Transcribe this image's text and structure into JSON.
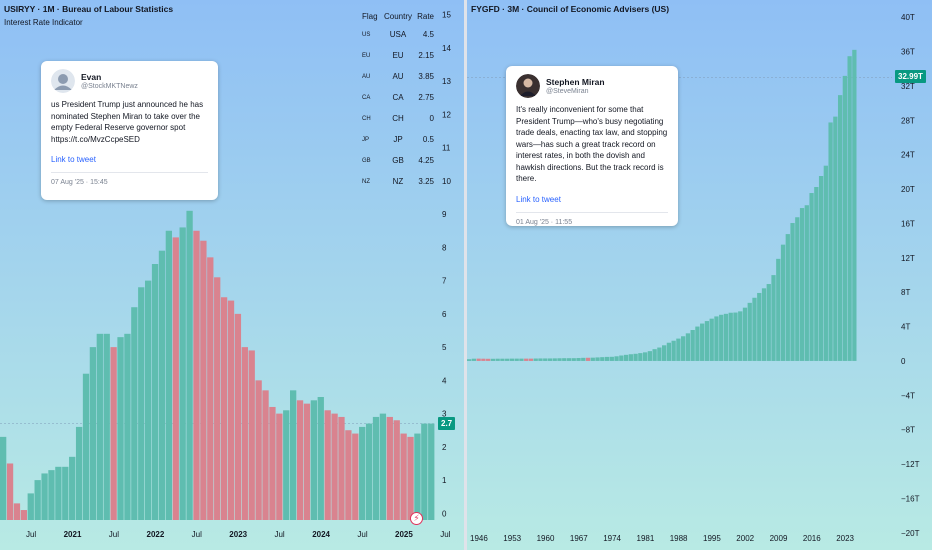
{
  "colors": {
    "up": "#5fbdb0",
    "down": "#d9838f",
    "badge": "#089981",
    "bg_top": "#8fbff5",
    "bg_bottom": "#b8eae4"
  },
  "left": {
    "title": "USIRYY · 1M · Bureau of Labour Statistics",
    "subtitle": "Interest Rate Indicator",
    "current_badge": "2.7",
    "tweet": {
      "name": "Evan",
      "handle": "@StockMKTNewz",
      "text": "us President Trump just announced he has nominated Stephen Miran to take over the empty Federal Reserve governor spot https://t.co/MvzCcpeSED",
      "link": "Link to tweet",
      "time": "07 Aug '25 · 15:45"
    },
    "rate_table": {
      "headers": [
        "Flag",
        "Country",
        "Rate"
      ],
      "rows": [
        {
          "flag": "US",
          "country": "USA",
          "rate": "4.5"
        },
        {
          "flag": "EU",
          "country": "EU",
          "rate": "2.15"
        },
        {
          "flag": "AU",
          "country": "AU",
          "rate": "3.85"
        },
        {
          "flag": "CA",
          "country": "CA",
          "rate": "2.75"
        },
        {
          "flag": "CH",
          "country": "CH",
          "rate": "0"
        },
        {
          "flag": "JP",
          "country": "JP",
          "rate": "0.5"
        },
        {
          "flag": "GB",
          "country": "GB",
          "rate": "4.25"
        },
        {
          "flag": "NZ",
          "country": "NZ",
          "rate": "3.25"
        }
      ]
    }
  },
  "right": {
    "title": "FYGFD · 3M · Council of Economic Advisers (US)",
    "current_badge": "32.99T",
    "tweet": {
      "name": "Stephen Miran",
      "handle": "@SteveMiran",
      "text": "It's really inconvenient for some that President Trump—who's busy negotiating trade deals, enacting tax law, and stopping wars—has such a great track record on interest rates, in both the dovish and hawkish directions. But the track record is there.",
      "link": "Link to tweet",
      "time": "01 Aug '25 · 11:55"
    }
  },
  "chart_data": [
    {
      "type": "bar",
      "title": "USIRYY · 1M · Bureau of Labour Statistics",
      "subtitle": "Interest Rate Indicator",
      "xlabel": "",
      "ylabel": "",
      "ylim": [
        -0.2,
        15.2
      ],
      "y_ticks": [
        0,
        1,
        2,
        3,
        4,
        5,
        6,
        7,
        8,
        9,
        10,
        11,
        12,
        13,
        14,
        15
      ],
      "x_ticks": [
        "Jul",
        "2021",
        "Jul",
        "2022",
        "Jul",
        "2023",
        "Jul",
        "2024",
        "Jul",
        "2025",
        "Jul"
      ],
      "x_tick_index": [
        4,
        10,
        16,
        22,
        28,
        34,
        40,
        46,
        52,
        58,
        64
      ],
      "values": [
        2.3,
        1.5,
        0.3,
        0.1,
        0.6,
        1.0,
        1.2,
        1.3,
        1.4,
        1.4,
        1.7,
        2.6,
        4.2,
        5.0,
        5.4,
        5.4,
        5.0,
        5.3,
        5.4,
        6.2,
        6.8,
        7.0,
        7.5,
        7.9,
        8.5,
        8.3,
        8.6,
        9.1,
        8.5,
        8.2,
        7.7,
        7.1,
        6.5,
        6.4,
        6.0,
        5.0,
        4.9,
        4.0,
        3.7,
        3.2,
        3.0,
        3.1,
        3.7,
        3.4,
        3.3,
        3.4,
        3.5,
        3.1,
        3.0,
        2.9,
        2.5,
        2.4,
        2.6,
        2.7,
        2.9,
        3.0,
        2.9,
        2.8,
        2.4,
        2.3,
        2.4,
        2.7,
        2.7
      ],
      "current_value": 2.7
    },
    {
      "type": "bar",
      "title": "FYGFD · 3M · Council of Economic Advisers (US)",
      "xlabel": "",
      "ylabel": "",
      "ylim": [
        -22,
        42
      ],
      "y_ticks": [
        "40T",
        "36T",
        "32T",
        "28T",
        "24T",
        "20T",
        "16T",
        "12T",
        "8T",
        "4T",
        "0",
        "−4T",
        "−8T",
        "−12T",
        "−16T",
        "−20T"
      ],
      "y_tick_values": [
        40,
        36,
        32,
        28,
        24,
        20,
        16,
        12,
        8,
        4,
        0,
        -4,
        -8,
        -12,
        -16,
        -20
      ],
      "x_ticks": [
        "1946",
        "1953",
        "1960",
        "1967",
        "1974",
        "1981",
        "1988",
        "1995",
        "2002",
        "2009",
        "2016",
        "2023"
      ],
      "x_tick_year": [
        1946,
        1953,
        1960,
        1967,
        1974,
        1981,
        1988,
        1995,
        2002,
        2009,
        2016,
        2023
      ],
      "years": [
        1944,
        1945,
        1946,
        1947,
        1948,
        1949,
        1950,
        1951,
        1952,
        1953,
        1954,
        1955,
        1956,
        1957,
        1958,
        1959,
        1960,
        1961,
        1962,
        1963,
        1964,
        1965,
        1966,
        1967,
        1968,
        1969,
        1970,
        1971,
        1972,
        1973,
        1974,
        1975,
        1976,
        1977,
        1978,
        1979,
        1980,
        1981,
        1982,
        1983,
        1984,
        1985,
        1986,
        1987,
        1988,
        1989,
        1990,
        1991,
        1992,
        1993,
        1994,
        1995,
        1996,
        1997,
        1998,
        1999,
        2000,
        2001,
        2002,
        2003,
        2004,
        2005,
        2006,
        2007,
        2008,
        2009,
        2010,
        2011,
        2012,
        2013,
        2014,
        2015,
        2016,
        2017,
        2018,
        2019,
        2020,
        2021,
        2022,
        2023,
        2024,
        2025
      ],
      "values": [
        0.2,
        0.26,
        0.27,
        0.26,
        0.25,
        0.25,
        0.26,
        0.26,
        0.26,
        0.27,
        0.27,
        0.27,
        0.27,
        0.27,
        0.28,
        0.29,
        0.29,
        0.29,
        0.3,
        0.31,
        0.32,
        0.32,
        0.32,
        0.34,
        0.36,
        0.37,
        0.38,
        0.41,
        0.44,
        0.47,
        0.48,
        0.54,
        0.63,
        0.71,
        0.78,
        0.83,
        0.91,
        1.0,
        1.14,
        1.37,
        1.56,
        1.82,
        2.12,
        2.35,
        2.6,
        2.87,
        3.21,
        3.6,
        4.0,
        4.35,
        4.64,
        4.92,
        5.18,
        5.37,
        5.48,
        5.61,
        5.63,
        5.77,
        6.2,
        6.76,
        7.35,
        7.91,
        8.45,
        8.95,
        9.99,
        11.88,
        13.53,
        14.76,
        16.05,
        16.72,
        17.79,
        18.12,
        19.54,
        20.24,
        21.52,
        22.72,
        27.75,
        28.43,
        30.93,
        33.17,
        35.46,
        36.2
      ],
      "down_years": [
        1946,
        1947,
        1948,
        1956,
        1957,
        1969
      ],
      "current_value": 32.99
    }
  ]
}
